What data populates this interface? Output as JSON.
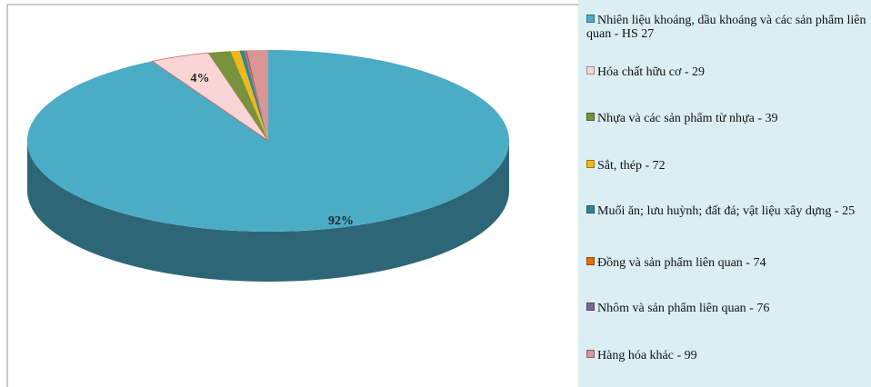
{
  "chart_data": {
    "type": "pie",
    "categories": [
      "Nhiên liệu khoáng, dầu khoáng và các sản phẩm liên quan - HS 27",
      "Hóa chất hữu cơ - 29",
      "Nhựa và các sản phẩm từ nhựa - 39",
      "Sắt, thép - 72",
      "Muối ăn; lưu huỳnh; đất đá; vật liệu xây dựng - 25",
      "Đồng và sản phẩm liên quan - 74",
      "Nhôm và sản phẩm liên quan - 76",
      "Hàng hóa khác - 99"
    ],
    "values": [
      92,
      4,
      1.5,
      0.6,
      0.3,
      0.1,
      0.1,
      1.4
    ],
    "value_labels": [
      "92%",
      "4%",
      null,
      null,
      null,
      null,
      null,
      null
    ],
    "colors": [
      "#4BACC6",
      "#F9D5D5",
      "#77933C",
      "#F2B81A",
      "#31859C",
      "#E46C0A",
      "#8064A2",
      "#D99694"
    ]
  }
}
